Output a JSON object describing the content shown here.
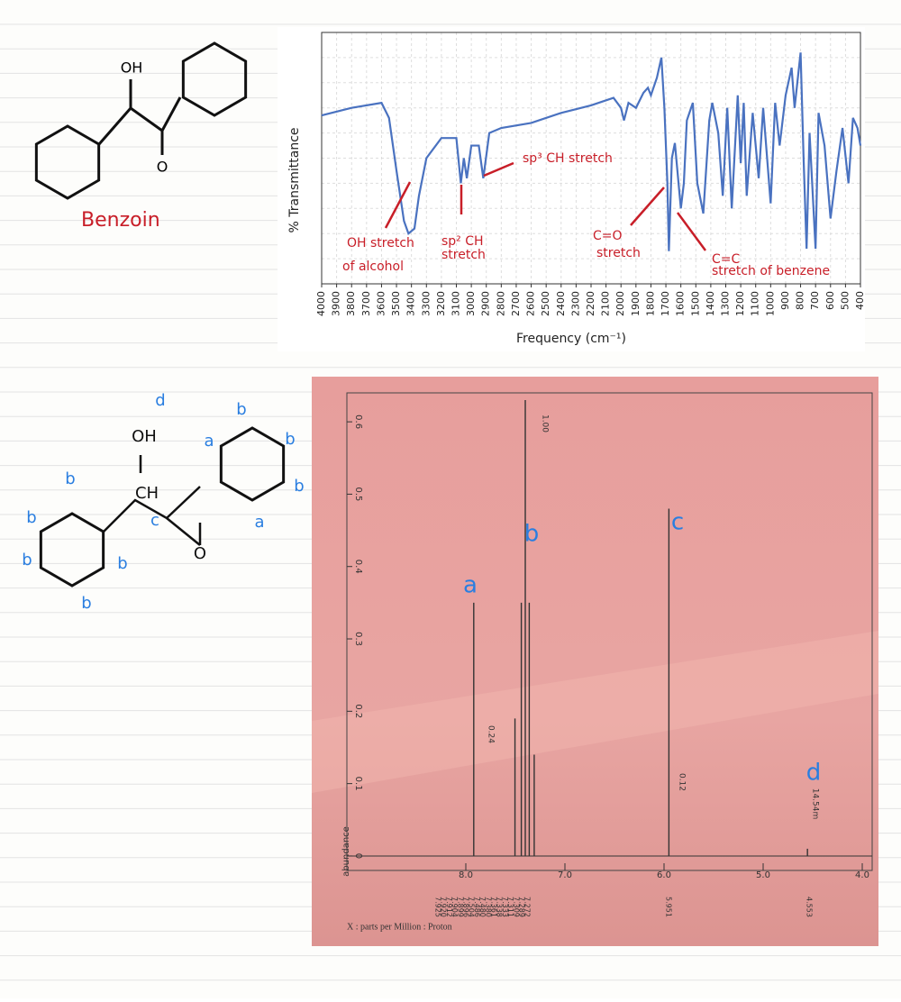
{
  "structure1": {
    "labels": [
      "OH",
      "O"
    ],
    "name": "Benzoin"
  },
  "structure2": {
    "labels": [
      "d",
      "OH",
      "CH",
      "c",
      "O",
      "a",
      "a",
      "b",
      "b",
      "b",
      "b",
      "b",
      "b",
      "b",
      "b"
    ]
  },
  "chart_data": [
    {
      "type": "line",
      "ylabel": "% Transmittance",
      "xlabel": "Frequency (cm⁻¹)",
      "color": "#4a72c0",
      "grid": true,
      "x": [
        4000,
        3800,
        3600,
        3550,
        3500,
        3450,
        3420,
        3380,
        3350,
        3300,
        3200,
        3100,
        3070,
        3050,
        3030,
        3000,
        2950,
        2920,
        2880,
        2800,
        2600,
        2400,
        2200,
        2050,
        2000,
        1980,
        1950,
        1900,
        1850,
        1820,
        1800,
        1760,
        1730,
        1710,
        1690,
        1680,
        1660,
        1640,
        1600,
        1580,
        1560,
        1520,
        1490,
        1450,
        1410,
        1390,
        1350,
        1320,
        1290,
        1260,
        1220,
        1200,
        1180,
        1160,
        1120,
        1080,
        1050,
        1000,
        970,
        940,
        900,
        860,
        840,
        800,
        780,
        760,
        740,
        700,
        680,
        640,
        600,
        560,
        520,
        480,
        450,
        420,
        400
      ],
      "values": [
        67,
        70,
        72,
        66,
        45,
        25,
        20,
        22,
        35,
        50,
        58,
        58,
        40,
        50,
        42,
        55,
        55,
        42,
        60,
        62,
        64,
        68,
        71,
        74,
        70,
        65,
        72,
        70,
        76,
        78,
        75,
        82,
        90,
        70,
        40,
        13,
        50,
        56,
        30,
        40,
        65,
        72,
        40,
        28,
        65,
        72,
        60,
        35,
        70,
        30,
        75,
        48,
        72,
        35,
        68,
        42,
        70,
        32,
        72,
        55,
        75,
        86,
        70,
        92,
        50,
        14,
        60,
        14,
        68,
        55,
        26,
        45,
        62,
        40,
        66,
        62,
        55
      ],
      "xlim": [
        4000,
        400
      ],
      "ylim": [
        0,
        100
      ],
      "xticks": [
        4000,
        3900,
        3800,
        3700,
        3600,
        3500,
        3400,
        3300,
        3200,
        3100,
        3000,
        2900,
        2800,
        2700,
        2600,
        2500,
        2400,
        2300,
        2200,
        2100,
        2000,
        1900,
        1800,
        1700,
        1600,
        1500,
        1400,
        1300,
        1200,
        1100,
        1000,
        900,
        800,
        700,
        600,
        500,
        400
      ],
      "annotations": [
        "OH stretch",
        "of alcohol",
        "sp² CH",
        "stretch",
        "sp³ CH stretch",
        "C=O",
        "stretch",
        "C=C",
        "stretch of benzene"
      ]
    },
    {
      "type": "stem",
      "ylabel": "abundance",
      "xlabel": "X : parts per Million : Proton",
      "color": "#333",
      "x": [
        7.92,
        7.504,
        7.44,
        7.4,
        7.36,
        7.31,
        5.951,
        4.553
      ],
      "values": [
        0.35,
        0.19,
        0.35,
        0.63,
        0.35,
        0.14,
        0.48,
        0.01
      ],
      "xlim": [
        9.2,
        3.9
      ],
      "ylim": [
        -0.02,
        0.64
      ],
      "xticks": [
        {
          "value": 8,
          "label": "8.0"
        },
        {
          "value": 7,
          "label": "7.0"
        },
        {
          "value": 6,
          "label": "6.0"
        },
        {
          "value": 5,
          "label": "5.0"
        },
        {
          "value": 4,
          "label": "4.0"
        }
      ],
      "yticks": [
        0,
        0.1,
        0.2,
        0.3,
        0.4,
        0.5,
        0.6
      ],
      "integrals": [
        "0.24",
        "1.00",
        "0.12",
        "14.54m"
      ],
      "peak_labels": [
        "7.925",
        "7.920",
        "7.912",
        "7.904",
        "7.899",
        "7.896",
        "7.504",
        "7.486",
        "7.480",
        "7.380",
        "7.361",
        "7.338",
        "7.333",
        "7.311",
        "7.309",
        "7.289",
        "7.272",
        "5.951",
        "4.553"
      ],
      "annotations": [
        "a",
        "b",
        "c",
        "d"
      ]
    }
  ]
}
